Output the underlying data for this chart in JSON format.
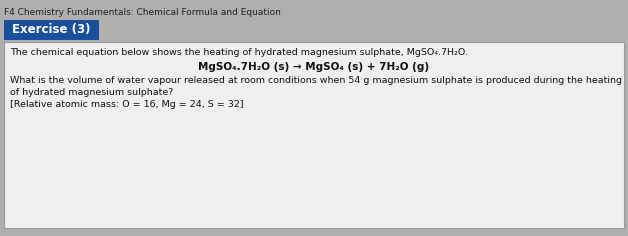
{
  "header_text": "F4 Chemistry Fundamentals: Chemical Formula and Equation",
  "exercise_label": "Exercise (3)",
  "exercise_bg": "#1a4f9e",
  "exercise_text_color": "#ffffff",
  "box_bg": "#f0efed",
  "box_border": "#999999",
  "page_bg": "#b0afad",
  "line1": "The chemical equation below shows the heating of hydrated magnesium sulphate, MgSO₄.7H₂O.",
  "line2_bold": "MgSO₄.7H₂O (s) → MgSO₄ (s) + 7H₂O (g)",
  "line3": "What is the volume of water vapour released at room conditions when 54 g magnesium sulphate is produced during the heating",
  "line4": "of hydrated magnesium sulphate?",
  "line5": "[Relative atomic mass: O = 16, Mg = 24, S = 32]",
  "header_fontsize": 6.5,
  "body_fontsize": 6.8,
  "bold_fontsize": 7.5,
  "exercise_fontsize": 8.5
}
